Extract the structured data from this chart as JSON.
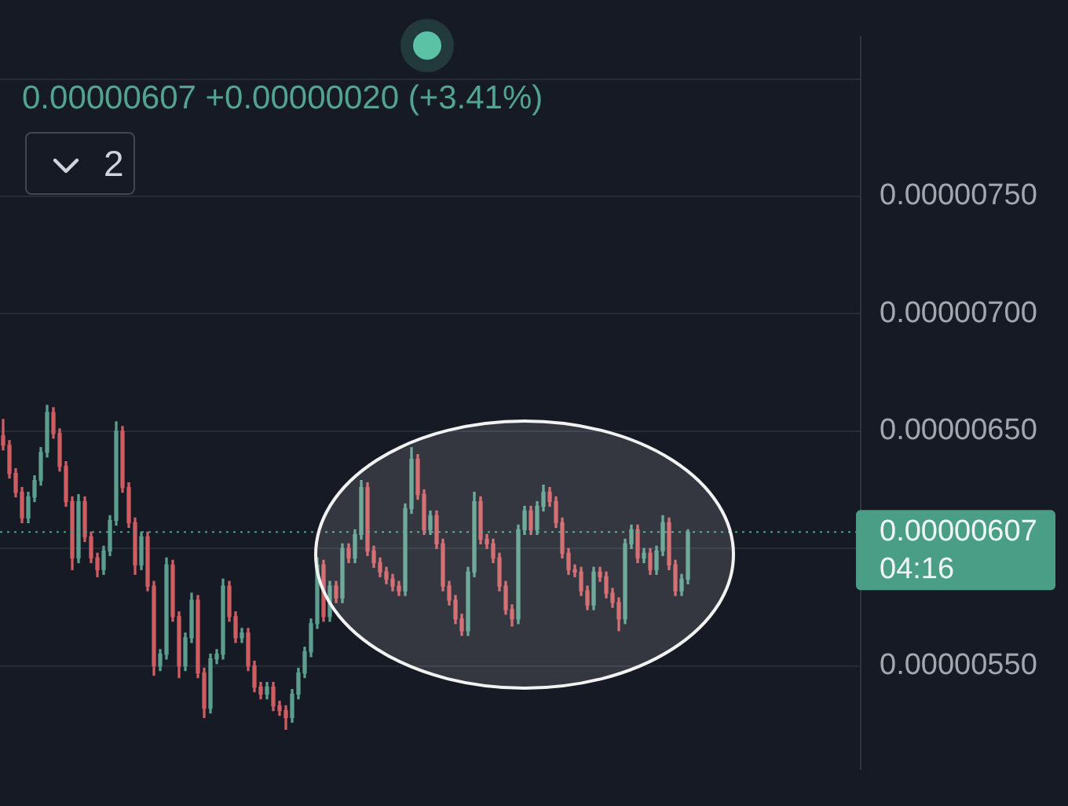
{
  "chart_data": {
    "type": "candlestick",
    "subtitle": "0.00000607 +0.00000020 (+3.41%)",
    "annotations": [
      "2"
    ],
    "categories": [
      null,
      null,
      null,
      null,
      null,
      null,
      null,
      null,
      null,
      null,
      null,
      null,
      null,
      null,
      null,
      null,
      null,
      null,
      null,
      null,
      null,
      null,
      null,
      null,
      null,
      null,
      null,
      null,
      null,
      null,
      null,
      null,
      null,
      null,
      null,
      null,
      null,
      null,
      null,
      null,
      null,
      null,
      null,
      null,
      null,
      null,
      null,
      null,
      null,
      null,
      null,
      null,
      null,
      null,
      null,
      null,
      null,
      null,
      null,
      null,
      null,
      null,
      null,
      null,
      null,
      null,
      null,
      null,
      null,
      null,
      null,
      null,
      null,
      null,
      null,
      null,
      null,
      null,
      null,
      null,
      null,
      null,
      null,
      null,
      null,
      null,
      null,
      null,
      null,
      null,
      null,
      null,
      null,
      null,
      null,
      null,
      null,
      null,
      null,
      null,
      null,
      null,
      null,
      null,
      null,
      null,
      null,
      null,
      null,
      null,
      null,
      null,
      null,
      null,
      null,
      null,
      null,
      null,
      null,
      null,
      null,
      null,
      null,
      null,
      null,
      null,
      null,
      null,
      null,
      null,
      null,
      null,
      null,
      null,
      null,
      null,
      null
    ],
    "ohlc": [
      [
        6.48e-06,
        6.55e-06,
        6.42e-06,
        6.44e-06
      ],
      [
        6.44e-06,
        6.46e-06,
        6.3e-06,
        6.32e-06
      ],
      [
        6.32e-06,
        6.34e-06,
        6.22e-06,
        6.24e-06
      ],
      [
        6.24e-06,
        6.26e-06,
        6.11e-06,
        6.13e-06
      ],
      [
        6.13e-06,
        6.24e-06,
        6.11e-06,
        6.22e-06
      ],
      [
        6.22e-06,
        6.31e-06,
        6.2e-06,
        6.29e-06
      ],
      [
        6.29e-06,
        6.43e-06,
        6.27e-06,
        6.41e-06
      ],
      [
        6.41e-06,
        6.61e-06,
        6.39e-06,
        6.58e-06
      ],
      [
        6.58e-06,
        6.6e-06,
        6.47e-06,
        6.49e-06
      ],
      [
        6.49e-06,
        6.51e-06,
        6.33e-06,
        6.35e-06
      ],
      [
        6.35e-06,
        6.37e-06,
        6.18e-06,
        6.2e-06
      ],
      [
        6.2e-06,
        6.22e-06,
        5.91e-06,
        5.96e-06
      ],
      [
        5.96e-06,
        6.23e-06,
        5.94e-06,
        6.2e-06
      ],
      [
        6.2e-06,
        6.22e-06,
        6.03e-06,
        6.05e-06
      ],
      [
        6.05e-06,
        6.07e-06,
        5.94e-06,
        5.96e-06
      ],
      [
        5.96e-06,
        5.98e-06,
        5.88e-06,
        5.91e-06
      ],
      [
        5.91e-06,
        6.01e-06,
        5.89e-06,
        5.99e-06
      ],
      [
        5.99e-06,
        6.14e-06,
        5.97e-06,
        6.12e-06
      ],
      [
        6.12e-06,
        6.54e-06,
        6.1e-06,
        6.5e-06
      ],
      [
        6.5e-06,
        6.52e-06,
        6.24e-06,
        6.26e-06
      ],
      [
        6.26e-06,
        6.28e-06,
        6.09e-06,
        6.11e-06
      ],
      [
        6.11e-06,
        6.13e-06,
        5.89e-06,
        5.93e-06
      ],
      [
        5.93e-06,
        6.07e-06,
        5.91e-06,
        6.05e-06
      ],
      [
        6.05e-06,
        6.07e-06,
        5.82e-06,
        5.84e-06
      ],
      [
        5.84e-06,
        5.86e-06,
        5.46e-06,
        5.5e-06
      ],
      [
        5.5e-06,
        5.57e-06,
        5.48e-06,
        5.55e-06
      ],
      [
        5.55e-06,
        5.96e-06,
        5.53e-06,
        5.93e-06
      ],
      [
        5.93e-06,
        5.95e-06,
        5.69e-06,
        5.71e-06
      ],
      [
        5.71e-06,
        5.73e-06,
        5.45e-06,
        5.5e-06
      ],
      [
        5.5e-06,
        5.64e-06,
        5.48e-06,
        5.62e-06
      ],
      [
        5.62e-06,
        5.81e-06,
        5.6e-06,
        5.78e-06
      ],
      [
        5.78e-06,
        5.8e-06,
        5.45e-06,
        5.47e-06
      ],
      [
        5.47e-06,
        5.49e-06,
        5.28e-06,
        5.32e-06
      ],
      [
        5.32e-06,
        5.55e-06,
        5.3e-06,
        5.53e-06
      ],
      [
        5.53e-06,
        5.57e-06,
        5.51e-06,
        5.55e-06
      ],
      [
        5.55e-06,
        5.87e-06,
        5.53e-06,
        5.84e-06
      ],
      [
        5.84e-06,
        5.86e-06,
        5.69e-06,
        5.71e-06
      ],
      [
        5.71e-06,
        5.73e-06,
        5.6e-06,
        5.62e-06
      ],
      [
        5.62e-06,
        5.66e-06,
        5.6e-06,
        5.64e-06
      ],
      [
        5.64e-06,
        5.66e-06,
        5.48e-06,
        5.5e-06
      ],
      [
        5.5e-06,
        5.52e-06,
        5.39e-06,
        5.41e-06
      ],
      [
        5.41e-06,
        5.43e-06,
        5.36e-06,
        5.38e-06
      ],
      [
        5.38e-06,
        5.43e-06,
        5.36e-06,
        5.41e-06
      ],
      [
        5.41e-06,
        5.43e-06,
        5.31e-06,
        5.33e-06
      ],
      [
        5.33e-06,
        5.35e-06,
        5.29e-06,
        5.31e-06
      ],
      [
        5.31e-06,
        5.33e-06,
        5.23e-06,
        5.28e-06
      ],
      [
        5.28e-06,
        5.4e-06,
        5.26e-06,
        5.38e-06
      ],
      [
        5.38e-06,
        5.49e-06,
        5.36e-06,
        5.47e-06
      ],
      [
        5.47e-06,
        5.58e-06,
        5.45e-06,
        5.56e-06
      ],
      [
        5.56e-06,
        5.7e-06,
        5.54e-06,
        5.68e-06
      ],
      [
        5.68e-06,
        5.96e-06,
        5.66e-06,
        5.93e-06
      ],
      [
        5.93e-06,
        5.95e-06,
        5.69e-06,
        5.71e-06
      ],
      [
        5.71e-06,
        5.86e-06,
        5.69e-06,
        5.84e-06
      ],
      [
        5.84e-06,
        5.86e-06,
        5.77e-06,
        5.79e-06
      ],
      [
        5.79e-06,
        6.02e-06,
        5.77e-06,
        6e-06
      ],
      [
        6e-06,
        6.02e-06,
        5.94e-06,
        5.96e-06
      ],
      [
        5.96e-06,
        6.08e-06,
        5.94e-06,
        6.06e-06
      ],
      [
        6.06e-06,
        6.29e-06,
        6.04e-06,
        6.26e-06
      ],
      [
        6.26e-06,
        6.28e-06,
        5.97e-06,
        5.99e-06
      ],
      [
        5.99e-06,
        6.01e-06,
        5.92e-06,
        5.94e-06
      ],
      [
        5.94e-06,
        5.96e-06,
        5.88e-06,
        5.9e-06
      ],
      [
        5.9e-06,
        5.92e-06,
        5.85e-06,
        5.87e-06
      ],
      [
        5.87e-06,
        5.89e-06,
        5.82e-06,
        5.84e-06
      ],
      [
        5.84e-06,
        5.86e-06,
        5.8e-06,
        5.82e-06
      ],
      [
        5.82e-06,
        6.19e-06,
        5.8e-06,
        6.17e-06
      ],
      [
        6.17e-06,
        6.43e-06,
        6.15e-06,
        6.38e-06
      ],
      [
        6.38e-06,
        6.4e-06,
        6.21e-06,
        6.23e-06
      ],
      [
        6.23e-06,
        6.25e-06,
        6.06e-06,
        6.08e-06
      ],
      [
        6.08e-06,
        6.16e-06,
        6.06e-06,
        6.14e-06
      ],
      [
        6.14e-06,
        6.16e-06,
        6e-06,
        6.02e-06
      ],
      [
        6.02e-06,
        6.04e-06,
        5.82e-06,
        5.84e-06
      ],
      [
        5.84e-06,
        5.86e-06,
        5.76e-06,
        5.78e-06
      ],
      [
        5.78e-06,
        5.8e-06,
        5.68e-06,
        5.7e-06
      ],
      [
        5.7e-06,
        5.72e-06,
        5.63e-06,
        5.65e-06
      ],
      [
        5.65e-06,
        5.92e-06,
        5.63e-06,
        5.9e-06
      ],
      [
        5.9e-06,
        6.24e-06,
        5.88e-06,
        6.2e-06
      ],
      [
        6.2e-06,
        6.22e-06,
        6.02e-06,
        6.04e-06
      ],
      [
        6.04e-06,
        6.06e-06,
        6e-06,
        6.02e-06
      ],
      [
        6.02e-06,
        6.04e-06,
        5.94e-06,
        5.96e-06
      ],
      [
        5.96e-06,
        5.98e-06,
        5.82e-06,
        5.84e-06
      ],
      [
        5.84e-06,
        5.86e-06,
        5.72e-06,
        5.74e-06
      ],
      [
        5.74e-06,
        5.76e-06,
        5.67e-06,
        5.7e-06
      ],
      [
        5.7e-06,
        6.1e-06,
        5.68e-06,
        6.08e-06
      ],
      [
        6.08e-06,
        6.18e-06,
        6.06e-06,
        6.16e-06
      ],
      [
        6.16e-06,
        6.18e-06,
        6.06e-06,
        6.08e-06
      ],
      [
        6.08e-06,
        6.2e-06,
        6.06e-06,
        6.18e-06
      ],
      [
        6.18e-06,
        6.27e-06,
        6.16e-06,
        6.24e-06
      ],
      [
        6.24e-06,
        6.26e-06,
        6.18e-06,
        6.2e-06
      ],
      [
        6.2e-06,
        6.22e-06,
        6.09e-06,
        6.11e-06
      ],
      [
        6.11e-06,
        6.13e-06,
        5.96e-06,
        5.98e-06
      ],
      [
        5.98e-06,
        6e-06,
        5.89e-06,
        5.91e-06
      ],
      [
        5.91e-06,
        5.93e-06,
        5.88e-06,
        5.9e-06
      ],
      [
        5.9e-06,
        5.92e-06,
        5.8e-06,
        5.82e-06
      ],
      [
        5.82e-06,
        5.84e-06,
        5.74e-06,
        5.76e-06
      ],
      [
        5.76e-06,
        5.92e-06,
        5.74e-06,
        5.9e-06
      ],
      [
        5.9e-06,
        5.92e-06,
        5.86e-06,
        5.88e-06
      ],
      [
        5.88e-06,
        5.9e-06,
        5.79e-06,
        5.81e-06
      ],
      [
        5.81e-06,
        5.83e-06,
        5.75e-06,
        5.77e-06
      ],
      [
        5.77e-06,
        5.79e-06,
        5.65e-06,
        5.7e-06
      ],
      [
        5.7e-06,
        6.04e-06,
        5.68e-06,
        6.02e-06
      ],
      [
        6.02e-06,
        6.1e-06,
        6e-06,
        6.08e-06
      ],
      [
        6.08e-06,
        6.1e-06,
        5.94e-06,
        5.96e-06
      ],
      [
        5.96e-06,
        6e-06,
        5.94e-06,
        5.98e-06
      ],
      [
        5.98e-06,
        6e-06,
        5.89e-06,
        5.91e-06
      ],
      [
        5.91e-06,
        6.01e-06,
        5.89e-06,
        5.99e-06
      ],
      [
        5.99e-06,
        6.14e-06,
        5.97e-06,
        6.11e-06
      ],
      [
        6.11e-06,
        6.13e-06,
        5.91e-06,
        5.93e-06
      ],
      [
        5.93e-06,
        5.95e-06,
        5.8e-06,
        5.82e-06
      ],
      [
        5.82e-06,
        5.89e-06,
        5.8e-06,
        5.87e-06
      ],
      [
        5.87e-06,
        6.08e-06,
        5.85e-06,
        6.07e-06
      ],
      null,
      null,
      null,
      null,
      null,
      null,
      null,
      null,
      null,
      null,
      null,
      null,
      null,
      null,
      null,
      null,
      null,
      null,
      null,
      null,
      null,
      null,
      null,
      null,
      null,
      null,
      null
    ],
    "colors": [
      "#cd5c63",
      "#cd5c63",
      "#cd5c63",
      "#cd5c63",
      "#5b9e8d",
      "#5b9e8d",
      "#5b9e8d",
      "#5b9e8d",
      "#cd5c63",
      "#cd5c63",
      "#cd5c63",
      "#cd5c63",
      "#5b9e8d",
      "#cd5c63",
      "#cd5c63",
      "#cd5c63",
      "#5b9e8d",
      "#5b9e8d",
      "#5b9e8d",
      "#cd5c63",
      "#cd5c63",
      "#cd5c63",
      "#5b9e8d",
      "#cd5c63",
      "#cd5c63",
      "#5b9e8d",
      "#5b9e8d",
      "#cd5c63",
      "#cd5c63",
      "#5b9e8d",
      "#5b9e8d",
      "#cd5c63",
      "#cd5c63",
      "#5b9e8d",
      "#5b9e8d",
      "#5b9e8d",
      "#cd5c63",
      "#cd5c63",
      "#5b9e8d",
      "#cd5c63",
      "#cd5c63",
      "#cd5c63",
      "#5b9e8d",
      "#cd5c63",
      "#cd5c63",
      "#cd5c63",
      "#5b9e8d",
      "#5b9e8d",
      "#5b9e8d",
      "#5b9e8d",
      "#5b9e8d",
      "#cd5c63",
      "#5b9e8d",
      "#cd5c63",
      "#5b9e8d",
      "#cd5c63",
      "#5b9e8d",
      "#5b9e8d",
      "#cd5c63",
      "#cd5c63",
      "#cd5c63",
      "#cd5c63",
      "#cd5c63",
      "#cd5c63",
      "#5b9e8d",
      "#5b9e8d",
      "#cd5c63",
      "#cd5c63",
      "#5b9e8d",
      "#cd5c63",
      "#cd5c63",
      "#cd5c63",
      "#cd5c63",
      "#cd5c63",
      "#5b9e8d",
      "#5b9e8d",
      "#cd5c63",
      "#cd5c63",
      "#cd5c63",
      "#cd5c63",
      "#cd5c63",
      "#cd5c63",
      "#5b9e8d",
      "#5b9e8d",
      "#cd5c63",
      "#5b9e8d",
      "#5b9e8d",
      "#cd5c63",
      "#cd5c63",
      "#cd5c63",
      "#cd5c63",
      "#cd5c63",
      "#cd5c63",
      "#cd5c63",
      "#5b9e8d",
      "#cd5c63",
      "#cd5c63",
      "#cd5c63",
      "#cd5c63",
      "#5b9e8d",
      "#5b9e8d",
      "#cd5c63",
      "#5b9e8d",
      "#cd5c63",
      "#5b9e8d",
      "#5b9e8d",
      "#cd5c63",
      "#cd5c63",
      "#5b9e8d",
      "#5b9e8d",
      null,
      null,
      null,
      null,
      null,
      null,
      null,
      null,
      null,
      null,
      null,
      null,
      null,
      null,
      null,
      null,
      null,
      null,
      null,
      null,
      null,
      null,
      null,
      null,
      null,
      null,
      null
    ],
    "ylim": [
      5.06e-06,
      8.18e-06
    ],
    "yticks": [
      {
        "value": 5.5e-06,
        "label": "0.00000550"
      },
      {
        "value": 6e-06,
        "label": null
      },
      {
        "value": 6.5e-06,
        "label": "0.00000650"
      },
      {
        "value": 7e-06,
        "label": "0.00000700"
      },
      {
        "value": 7.5e-06,
        "label": "0.00000750"
      },
      {
        "value": 8e-06,
        "label": null
      }
    ],
    "grid": "y",
    "ref_lines": [
      {
        "axis": "y",
        "value": 6.07e-06,
        "label": "0.00000607 04:16",
        "color": "#4a9e85",
        "line_style": "dotted"
      }
    ]
  }
}
